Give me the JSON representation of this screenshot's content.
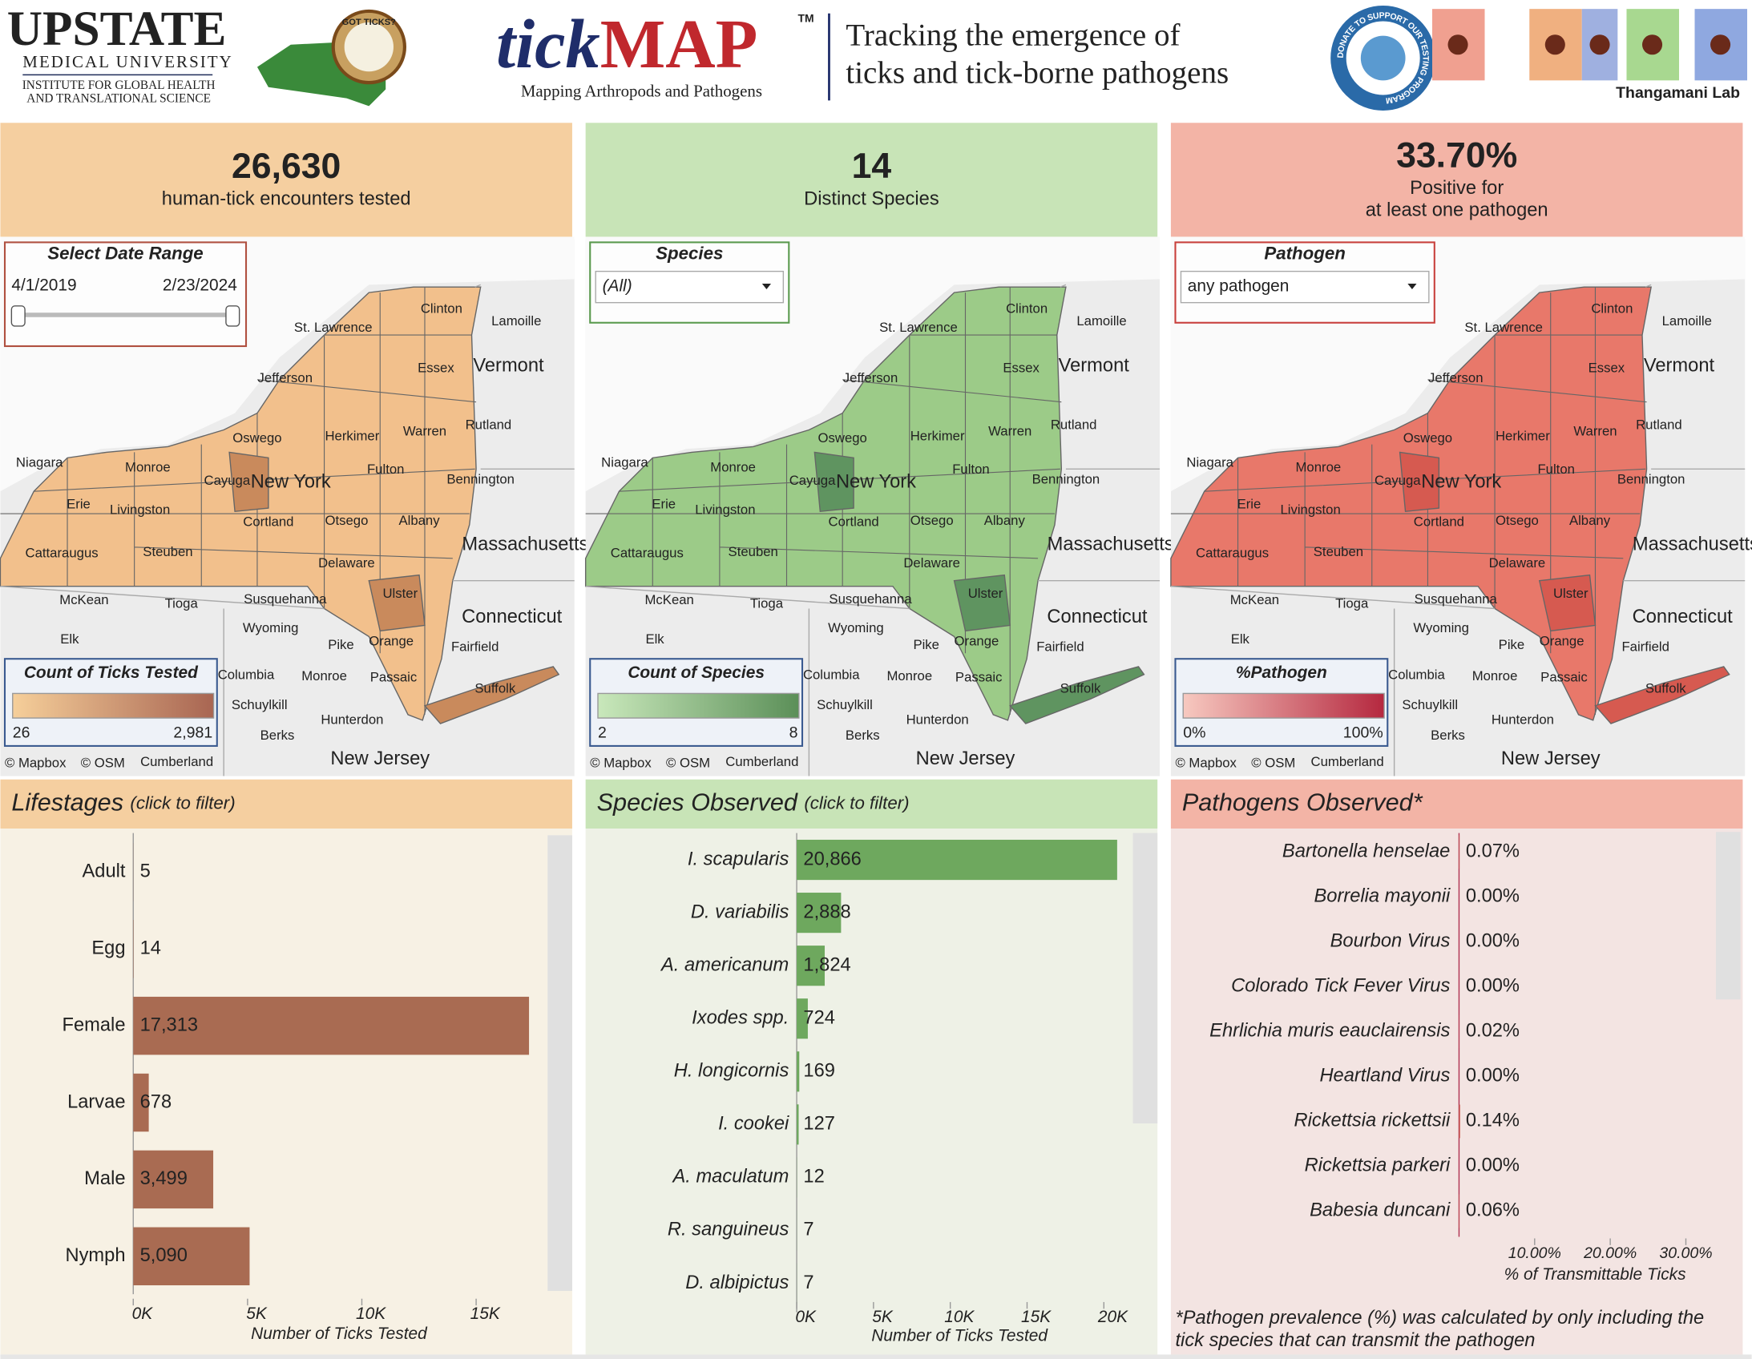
{
  "header": {
    "logo_left": "UPSTATE",
    "logo_left_sub": "MEDICAL UNIVERSITY",
    "logo_left_inst": [
      "INSTITUTE FOR GLOBAL HEALTH",
      "AND TRANSLATIONAL SCIENCE"
    ],
    "badge": "GOT TICKS?",
    "title_a": "tick",
    "title_b": "MAP",
    "tm": "TM",
    "tagline": "Mapping Arthropods and Pathogens",
    "heading": [
      "Tracking the emergence of",
      "ticks and tick-borne pathogens"
    ],
    "donate": "DONATE TO SUPPORT OUR TESTING PROGRAM",
    "lab": "Thangamani Lab"
  },
  "kpis": [
    {
      "value": "26,630",
      "label": [
        "human-tick encounters tested"
      ]
    },
    {
      "value": "14",
      "label": [
        "Distinct Species"
      ]
    },
    {
      "value": "33.70%",
      "label": [
        "Positive for",
        "at least one pathogen"
      ]
    }
  ],
  "filters": [
    {
      "title": "Select Date Range",
      "start": "4/1/2019",
      "end": "2/23/2024"
    },
    {
      "title": "Species",
      "value": "(All)"
    },
    {
      "title": "Pathogen",
      "value": "any pathogen"
    }
  ],
  "maps": {
    "credits": [
      "© Mapbox",
      "© OSM"
    ],
    "place_labels": [
      "New York",
      "Vermont",
      "Massachusetts",
      "Connecticut",
      "New Jersey",
      "St. Lawrence",
      "Essex",
      "Clinton",
      "Lamoille",
      "Jefferson",
      "Oswego",
      "Herkimer",
      "Warren",
      "Rutland",
      "Niagara",
      "Monroe",
      "Cayuga",
      "Fulton",
      "Bennington",
      "Erie",
      "Livingston",
      "Cortland",
      "Otsego",
      "Albany",
      "Cattaraugus",
      "Steuben",
      "Delaware",
      "Ulster",
      "McKean",
      "Tioga",
      "Susquehanna",
      "Wyoming",
      "Elk",
      "Pike",
      "Orange",
      "Fairfield",
      "Columbia",
      "Monroe",
      "Passaic",
      "Suffolk",
      "Schuylkill",
      "Hunterdon",
      "Berks",
      "Cumberland"
    ],
    "legends": [
      {
        "title": "Count of Ticks Tested",
        "min": "26",
        "max": "2,981"
      },
      {
        "title": "Count of Species",
        "min": "2",
        "max": "8"
      },
      {
        "title": "%Pathogen",
        "min": "0%",
        "max": "100%"
      }
    ]
  },
  "chart_data": [
    {
      "type": "bar",
      "orientation": "horizontal",
      "title": "Lifestages",
      "subtitle": "(click to filter)",
      "categories": [
        "Adult",
        "Egg",
        "Female",
        "Larvae",
        "Male",
        "Nymph"
      ],
      "values": [
        5,
        14,
        17313,
        678,
        3499,
        5090
      ],
      "value_labels": [
        "5",
        "14",
        "17,313",
        "678",
        "3,499",
        "5,090"
      ],
      "color": "#a96b52",
      "xlim": [
        0,
        18000
      ],
      "xticks": [
        {
          "value": 0,
          "label": "0K"
        },
        {
          "value": 5000,
          "label": "5K"
        },
        {
          "value": 10000,
          "label": "10K"
        },
        {
          "value": 15000,
          "label": "15K"
        }
      ],
      "xlabel": "Number of Ticks Tested"
    },
    {
      "type": "bar",
      "orientation": "horizontal",
      "title": "Species Observed",
      "subtitle": "(click to filter)",
      "categories": [
        "I. scapularis",
        "D. variabilis",
        "A. americanum",
        "Ixodes spp.",
        "H. longicornis",
        "I. cookei",
        "A. maculatum",
        "R. sanguineus",
        "D. albipictus"
      ],
      "values": [
        20866,
        2888,
        1824,
        724,
        169,
        127,
        12,
        7,
        7
      ],
      "value_labels": [
        "20,866",
        "2,888",
        "1,824",
        "724",
        "169",
        "127",
        "12",
        "7",
        "7"
      ],
      "color": "#6ea85e",
      "xlim": [
        0,
        21200
      ],
      "xticks": [
        {
          "value": 0,
          "label": "0K"
        },
        {
          "value": 5000,
          "label": "5K"
        },
        {
          "value": 10000,
          "label": "10K"
        },
        {
          "value": 15000,
          "label": "15K"
        },
        {
          "value": 20000,
          "label": "20K"
        }
      ],
      "xlabel": "Number of Ticks Tested"
    },
    {
      "type": "bar",
      "orientation": "horizontal",
      "title": "Pathogens Observed*",
      "categories": [
        "Bartonella henselae",
        "Borrelia mayonii",
        "Bourbon Virus",
        "Colorado Tick Fever Virus",
        "Ehrlichia muris eauclairensis",
        "Heartland Virus",
        "Rickettsia rickettsii",
        "Rickettsia parkeri",
        "Babesia duncani"
      ],
      "values": [
        0.07,
        0.0,
        0.0,
        0.0,
        0.02,
        0.0,
        0.14,
        0.0,
        0.06
      ],
      "value_labels": [
        "0.07%",
        "0.00%",
        "0.00%",
        "0.00%",
        "0.02%",
        "0.00%",
        "0.14%",
        "0.00%",
        "0.06%"
      ],
      "color": "#c85a50",
      "xlim": [
        0,
        33
      ],
      "xticks": [
        {
          "value": 10,
          "label": "10.00%"
        },
        {
          "value": 20,
          "label": "20.00%"
        },
        {
          "value": 30,
          "label": "30.00%"
        }
      ],
      "xlabel": "% of Transmittable Ticks",
      "footnote": [
        "*Pathogen prevalence (%) was calculated by only including the",
        "tick species that can transmit the pathogen"
      ]
    }
  ]
}
